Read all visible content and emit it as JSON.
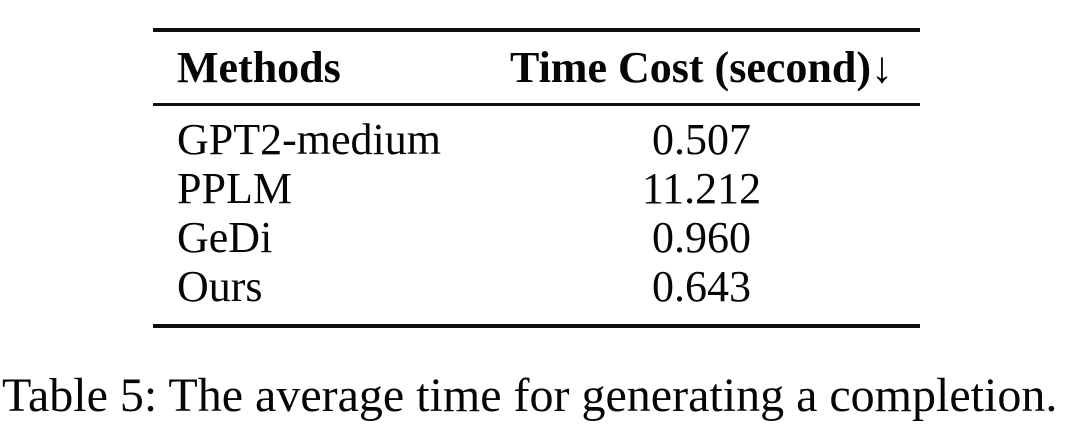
{
  "page": {
    "background": "#ffffff",
    "text_color": "#060606",
    "rule_color": "#101010"
  },
  "table": {
    "header": {
      "method_label": "Methods",
      "value_label": "Time Cost (second)",
      "sort_arrow": "↓"
    },
    "rows": [
      {
        "method": "GPT2-medium",
        "time_cost": "0.507"
      },
      {
        "method": "PPLM",
        "time_cost": "11.212"
      },
      {
        "method": "GeDi",
        "time_cost": "0.960"
      },
      {
        "method": "Ours",
        "time_cost": "0.643"
      }
    ]
  },
  "caption": "Table 5: The average time for generating a completion.",
  "chart_data": {
    "type": "table",
    "title": "Table 5: The average time for generating a completion.",
    "columns": [
      "Methods",
      "Time Cost (second)↓"
    ],
    "rows": [
      [
        "GPT2-medium",
        0.507
      ],
      [
        "PPLM",
        11.212
      ],
      [
        "GeDi",
        0.96
      ],
      [
        "Ours",
        0.643
      ]
    ]
  }
}
